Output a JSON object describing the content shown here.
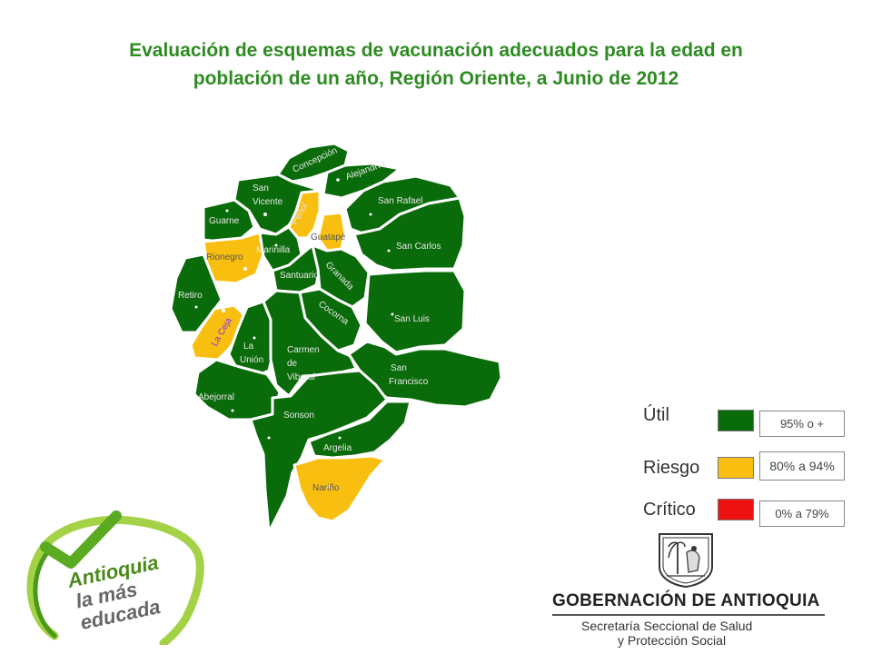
{
  "title_line1": "Evaluación de esquemas de vacunación adecuados para la edad en",
  "title_line2": "población de un año, Región Oriente, a Junio de 2012",
  "colors": {
    "util": "#0a6b0a",
    "riesgo": "#f9bf10",
    "critico": "#ee1111"
  },
  "municipalities": [
    {
      "name": "Concepción",
      "status": "util"
    },
    {
      "name": "Alejandría",
      "status": "util"
    },
    {
      "name": "San Vicente",
      "status": "util"
    },
    {
      "name": "Peñol",
      "status": "riesgo"
    },
    {
      "name": "Guatapé",
      "status": "riesgo"
    },
    {
      "name": "San Rafael",
      "status": "util"
    },
    {
      "name": "Guarne",
      "status": "util"
    },
    {
      "name": "Rionegro",
      "status": "riesgo"
    },
    {
      "name": "Marinilla",
      "status": "util"
    },
    {
      "name": "San Carlos",
      "status": "util"
    },
    {
      "name": "Santuario",
      "status": "util"
    },
    {
      "name": "Granada",
      "status": "util"
    },
    {
      "name": "Retiro",
      "status": "util"
    },
    {
      "name": "Cocorná",
      "status": "util"
    },
    {
      "name": "San Luis",
      "status": "util"
    },
    {
      "name": "La Ceja",
      "status": "riesgo"
    },
    {
      "name": "La Unión",
      "status": "util"
    },
    {
      "name": "Carmen de Viboral",
      "status": "util"
    },
    {
      "name": "San Francisco",
      "status": "util"
    },
    {
      "name": "Abejorral",
      "status": "util"
    },
    {
      "name": "Sonsón",
      "status": "util"
    },
    {
      "name": "Argelia",
      "status": "util"
    },
    {
      "name": "Nariño",
      "status": "riesgo"
    }
  ],
  "labels": {
    "concepcion": "Concepción",
    "alejandria": "Alejandría",
    "san_vicente_1": "San",
    "san_vicente_2": "Vicente",
    "penol": "Peñol",
    "guatape": "Guatapé",
    "san_rafael": "San Rafael",
    "guarne": "Guarne",
    "rionegro": "Rionegro",
    "marinilla": "Marinilla",
    "san_carlos": "San Carlos",
    "santuario": "Santuario",
    "granada": "Granada",
    "retiro": "Retiro",
    "cocorna": "Cocorna",
    "san_luis": "San Luis",
    "la_ceja": "La Ceja",
    "la_union_1": "La",
    "la_union_2": "Unión",
    "carmen_1": "Carmen",
    "carmen_2": "de",
    "carmen_3": "Viboral",
    "san_francisco_1": "San",
    "san_francisco_2": "Francisco",
    "abejorral": "Abejorral",
    "sonson": "Sonson",
    "argelia": "Argelia",
    "narino": "Nariño"
  },
  "legend": [
    {
      "label": "Útil",
      "range": "95% o +"
    },
    {
      "label": "Riesgo",
      "range": "80% a 94%"
    },
    {
      "label": "Crítico",
      "range": "0% a 79%"
    }
  ],
  "logo": {
    "line1": "Antioquia",
    "line2": "la más",
    "line3": "educada"
  },
  "footer": {
    "gobernacion": "GOBERNACIÓN DE ANTIOQUIA",
    "secretaria_1": "Secretaría Seccional de Salud",
    "secretaria_2": "y Protección Social"
  }
}
